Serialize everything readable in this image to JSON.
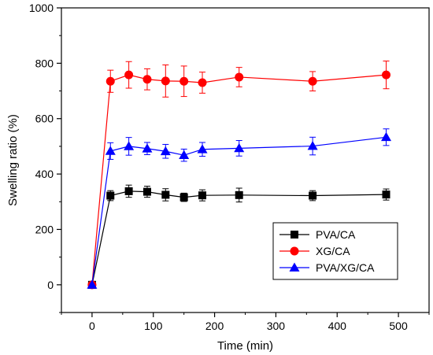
{
  "chart_data": {
    "type": "line",
    "xlabel": "Time (min)",
    "ylabel": "Swelling ratio (%)",
    "xlim": [
      -50,
      550
    ],
    "ylim": [
      -100,
      1000
    ],
    "xticks": [
      0,
      100,
      200,
      300,
      400,
      500
    ],
    "yticks": [
      0,
      200,
      400,
      600,
      800,
      1000
    ],
    "x": [
      0,
      30,
      60,
      90,
      120,
      150,
      180,
      240,
      360,
      480
    ],
    "legend_position": "bottom-right",
    "grid": false,
    "series": [
      {
        "name": "PVA/CA",
        "color": "#000000",
        "marker": "square",
        "values": [
          0,
          322,
          338,
          336,
          325,
          316,
          323,
          324,
          322,
          326
        ],
        "errors": [
          0,
          18,
          22,
          20,
          22,
          15,
          20,
          25,
          18,
          20
        ]
      },
      {
        "name": "XG/CA",
        "color": "#ff0000",
        "marker": "circle",
        "values": [
          0,
          735,
          758,
          742,
          736,
          735,
          730,
          750,
          735,
          758
        ],
        "errors": [
          0,
          40,
          48,
          38,
          58,
          55,
          38,
          35,
          35,
          50
        ]
      },
      {
        "name": "PVA/XG/CA",
        "color": "#0000ff",
        "marker": "triangle",
        "values": [
          0,
          483,
          500,
          492,
          482,
          468,
          489,
          493,
          501,
          533
        ],
        "errors": [
          0,
          30,
          32,
          22,
          25,
          22,
          25,
          28,
          32,
          30
        ]
      }
    ]
  }
}
